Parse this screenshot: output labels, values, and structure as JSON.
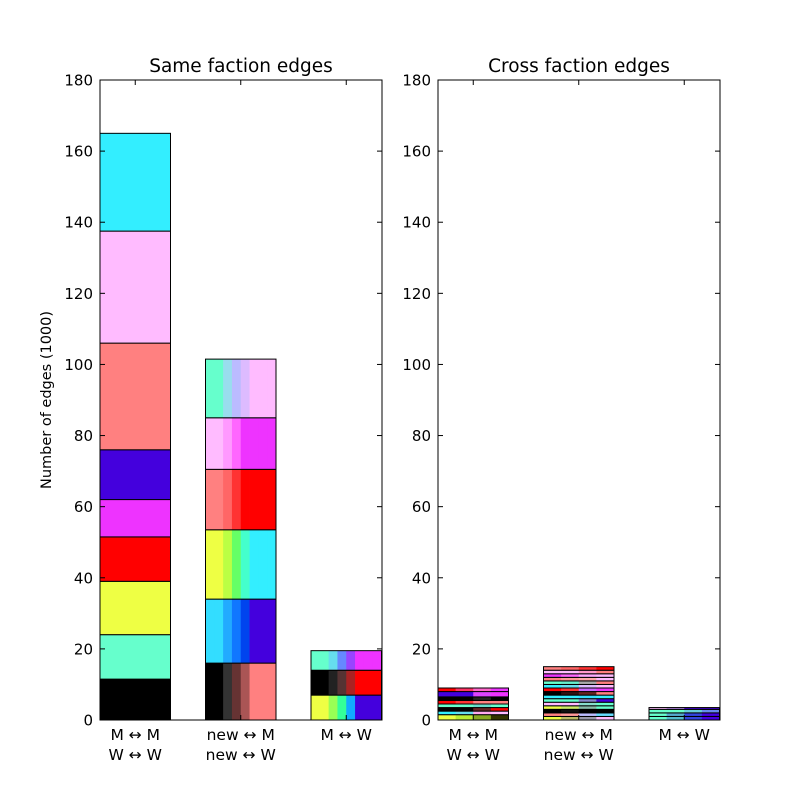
{
  "chart_data": [
    {
      "type": "bar",
      "stacked": true,
      "title": "Same faction edges",
      "ylabel": "Number of edges (1000)",
      "ylim": [
        0,
        180
      ],
      "yticks": [
        "0",
        "20",
        "40",
        "60",
        "80",
        "100",
        "120",
        "140",
        "160",
        "180"
      ],
      "categories": [
        {
          "line1": "M ↔ M",
          "line2": "W ↔ W"
        },
        {
          "line1": "new ↔ M",
          "line2": "new ↔ W"
        },
        {
          "line1": "M ↔ W",
          "line2": ""
        }
      ],
      "bars": [
        {
          "segments": [
            {
              "value": 11.5,
              "colors": [
                "#000000"
              ]
            },
            {
              "value": 12.5,
              "colors": [
                "#66ffcc"
              ]
            },
            {
              "value": 15.0,
              "colors": [
                "#eeff44"
              ]
            },
            {
              "value": 12.5,
              "colors": [
                "#ff0000"
              ]
            },
            {
              "value": 10.5,
              "colors": [
                "#ee33ff"
              ]
            },
            {
              "value": 14.0,
              "colors": [
                "#4400dd"
              ]
            },
            {
              "value": 30.0,
              "colors": [
                "#ff8080"
              ]
            },
            {
              "value": 31.5,
              "colors": [
                "#ffbbff"
              ]
            },
            {
              "value": 27.5,
              "colors": [
                "#33eeff"
              ]
            }
          ]
        },
        {
          "segments": [
            {
              "value": 16.0,
              "colors": [
                "#000000",
                "#000000",
                "#333333",
                "#663333",
                "#aa5555",
                "#ff8080",
                "#ff8080",
                "#ff8080"
              ]
            },
            {
              "value": 18.0,
              "colors": [
                "#33ddff",
                "#33ddff",
                "#22aaff",
                "#1177ff",
                "#0044ee",
                "#4400dd",
                "#4400dd",
                "#4400dd"
              ]
            },
            {
              "value": 19.5,
              "colors": [
                "#eeff44",
                "#eeff44",
                "#bbff44",
                "#66ff66",
                "#44ffcc",
                "#33eeff",
                "#33eeff",
                "#33eeff"
              ]
            },
            {
              "value": 17.0,
              "colors": [
                "#ff8080",
                "#ff8080",
                "#ff6666",
                "#ff3333",
                "#ff0000",
                "#ff0000",
                "#ff0000",
                "#ff0000"
              ]
            },
            {
              "value": 14.5,
              "colors": [
                "#ffbbff",
                "#ffbbff",
                "#ff99ff",
                "#ff66ff",
                "#ee33ff",
                "#ee33ff",
                "#ee33ff",
                "#ee33ff"
              ]
            },
            {
              "value": 16.5,
              "colors": [
                "#66ffcc",
                "#66ffcc",
                "#99ddee",
                "#bbbbff",
                "#ddbbff",
                "#ffbbff",
                "#ffbbff",
                "#ffbbff"
              ]
            }
          ]
        },
        {
          "segments": [
            {
              "value": 7.0,
              "colors": [
                "#eeff44",
                "#eeff44",
                "#99ff55",
                "#33ff99",
                "#11aaff",
                "#4400dd",
                "#4400dd",
                "#4400dd"
              ]
            },
            {
              "value": 7.0,
              "colors": [
                "#000000",
                "#000000",
                "#222222",
                "#553333",
                "#aa2222",
                "#ff0000",
                "#ff0000",
                "#ff0000"
              ]
            },
            {
              "value": 5.5,
              "colors": [
                "#66ffcc",
                "#66ffcc",
                "#66ddee",
                "#6688ff",
                "#9944ff",
                "#ee33ff",
                "#ee33ff",
                "#ee33ff"
              ]
            }
          ]
        }
      ]
    },
    {
      "type": "bar",
      "stacked": true,
      "title": "Cross faction edges",
      "ylabel": "",
      "ylim": [
        0,
        180
      ],
      "yticks": [
        "0",
        "20",
        "40",
        "60",
        "80",
        "100",
        "120",
        "140",
        "160",
        "180"
      ],
      "categories": [
        {
          "line1": "M ↔ M",
          "line2": "W ↔ W"
        },
        {
          "line1": "new ↔ M",
          "line2": "new ↔ W"
        },
        {
          "line1": "M ↔ W",
          "line2": ""
        }
      ],
      "bars": [
        {
          "segments": [
            {
              "value": 1.5,
              "colors": [
                "#eeff44",
                "#bbee33",
                "#88aa22",
                "#333300"
              ]
            },
            {
              "value": 1.0,
              "colors": [
                "#33eeff",
                "#66ddee",
                "#ffaaee",
                "#ffbbff"
              ]
            },
            {
              "value": 1.0,
              "colors": [
                "#000000",
                "#000000",
                "#662222",
                "#ff0000"
              ]
            },
            {
              "value": 1.0,
              "colors": [
                "#66ffcc",
                "#66ffcc",
                "#66ddcc",
                "#66ffcc"
              ]
            },
            {
              "value": 1.0,
              "colors": [
                "#ff0000",
                "#ff3333",
                "#ff8080",
                "#ff8080"
              ]
            },
            {
              "value": 1.0,
              "colors": [
                "#000000",
                "#000000",
                "#222222",
                "#000000"
              ]
            },
            {
              "value": 1.5,
              "colors": [
                "#4400dd",
                "#4400dd",
                "#dd44ff",
                "#ee33ff"
              ]
            },
            {
              "value": 1.0,
              "colors": [
                "#ff0000",
                "#ff3366",
                "#ff66cc",
                "#ee33ff"
              ]
            }
          ]
        },
        {
          "segments": [
            {
              "value": 1.0,
              "colors": [
                "#eeff44",
                "#bbbb66",
                "#9999aa",
                "#ffbbff"
              ]
            },
            {
              "value": 1.0,
              "colors": [
                "#ff8080",
                "#ff9999",
                "#bbbbff",
                "#66ddff"
              ]
            },
            {
              "value": 1.0,
              "colors": [
                "#000000",
                "#111111",
                "#000000",
                "#000000"
              ]
            },
            {
              "value": 1.0,
              "colors": [
                "#eeff44",
                "#ccee66",
                "#88bbaa",
                "#66ffcc"
              ]
            },
            {
              "value": 1.0,
              "colors": [
                "#ffbbff",
                "#ffbbff",
                "#88ddcc",
                "#66ffcc"
              ]
            },
            {
              "value": 1.0,
              "colors": [
                "#66ffcc",
                "#66ffcc",
                "#8888cc",
                "#4400dd"
              ]
            },
            {
              "value": 1.0,
              "colors": [
                "#33eeff",
                "#33eeff",
                "#33ddff",
                "#33eeff"
              ]
            },
            {
              "value": 1.0,
              "colors": [
                "#000000",
                "#331111",
                "#662222",
                "#ff8080"
              ]
            },
            {
              "value": 1.0,
              "colors": [
                "#ff0000",
                "#ff3333",
                "#cc66ff",
                "#ee33ff"
              ]
            },
            {
              "value": 1.0,
              "colors": [
                "#33eeff",
                "#66ddee",
                "#ddbbff",
                "#ffbbff"
              ]
            },
            {
              "value": 1.0,
              "colors": [
                "#66ffcc",
                "#66eecc",
                "#aaaaaa",
                "#ff8080"
              ]
            },
            {
              "value": 1.0,
              "colors": [
                "#ff8080",
                "#ff9999",
                "#ffaaaa",
                "#ffbbff"
              ]
            },
            {
              "value": 1.0,
              "colors": [
                "#ee33ff",
                "#ff66ff",
                "#ffaaff",
                "#ffbbff"
              ]
            },
            {
              "value": 1.0,
              "colors": [
                "#ffbbff",
                "#ffbbff",
                "#ff99cc",
                "#ff8080"
              ]
            },
            {
              "value": 1.0,
              "colors": [
                "#ff8080",
                "#ff6666",
                "#ff3333",
                "#ff0000"
              ]
            }
          ]
        },
        {
          "segments": [
            {
              "value": 1.0,
              "colors": [
                "#66ffcc",
                "#55bbcc",
                "#3344dd",
                "#4400dd"
              ]
            },
            {
              "value": 1.0,
              "colors": [
                "#66ffcc",
                "#55aacc",
                "#3344dd",
                "#4400dd"
              ]
            },
            {
              "value": 1.0,
              "colors": [
                "#66ffcc",
                "#66ffcc",
                "#66ccdd",
                "#6688ee"
              ]
            },
            {
              "value": 0.5,
              "colors": [
                "#ffbbff",
                "#bb88ee",
                "#4400dd",
                "#4400dd"
              ]
            }
          ]
        }
      ]
    }
  ]
}
